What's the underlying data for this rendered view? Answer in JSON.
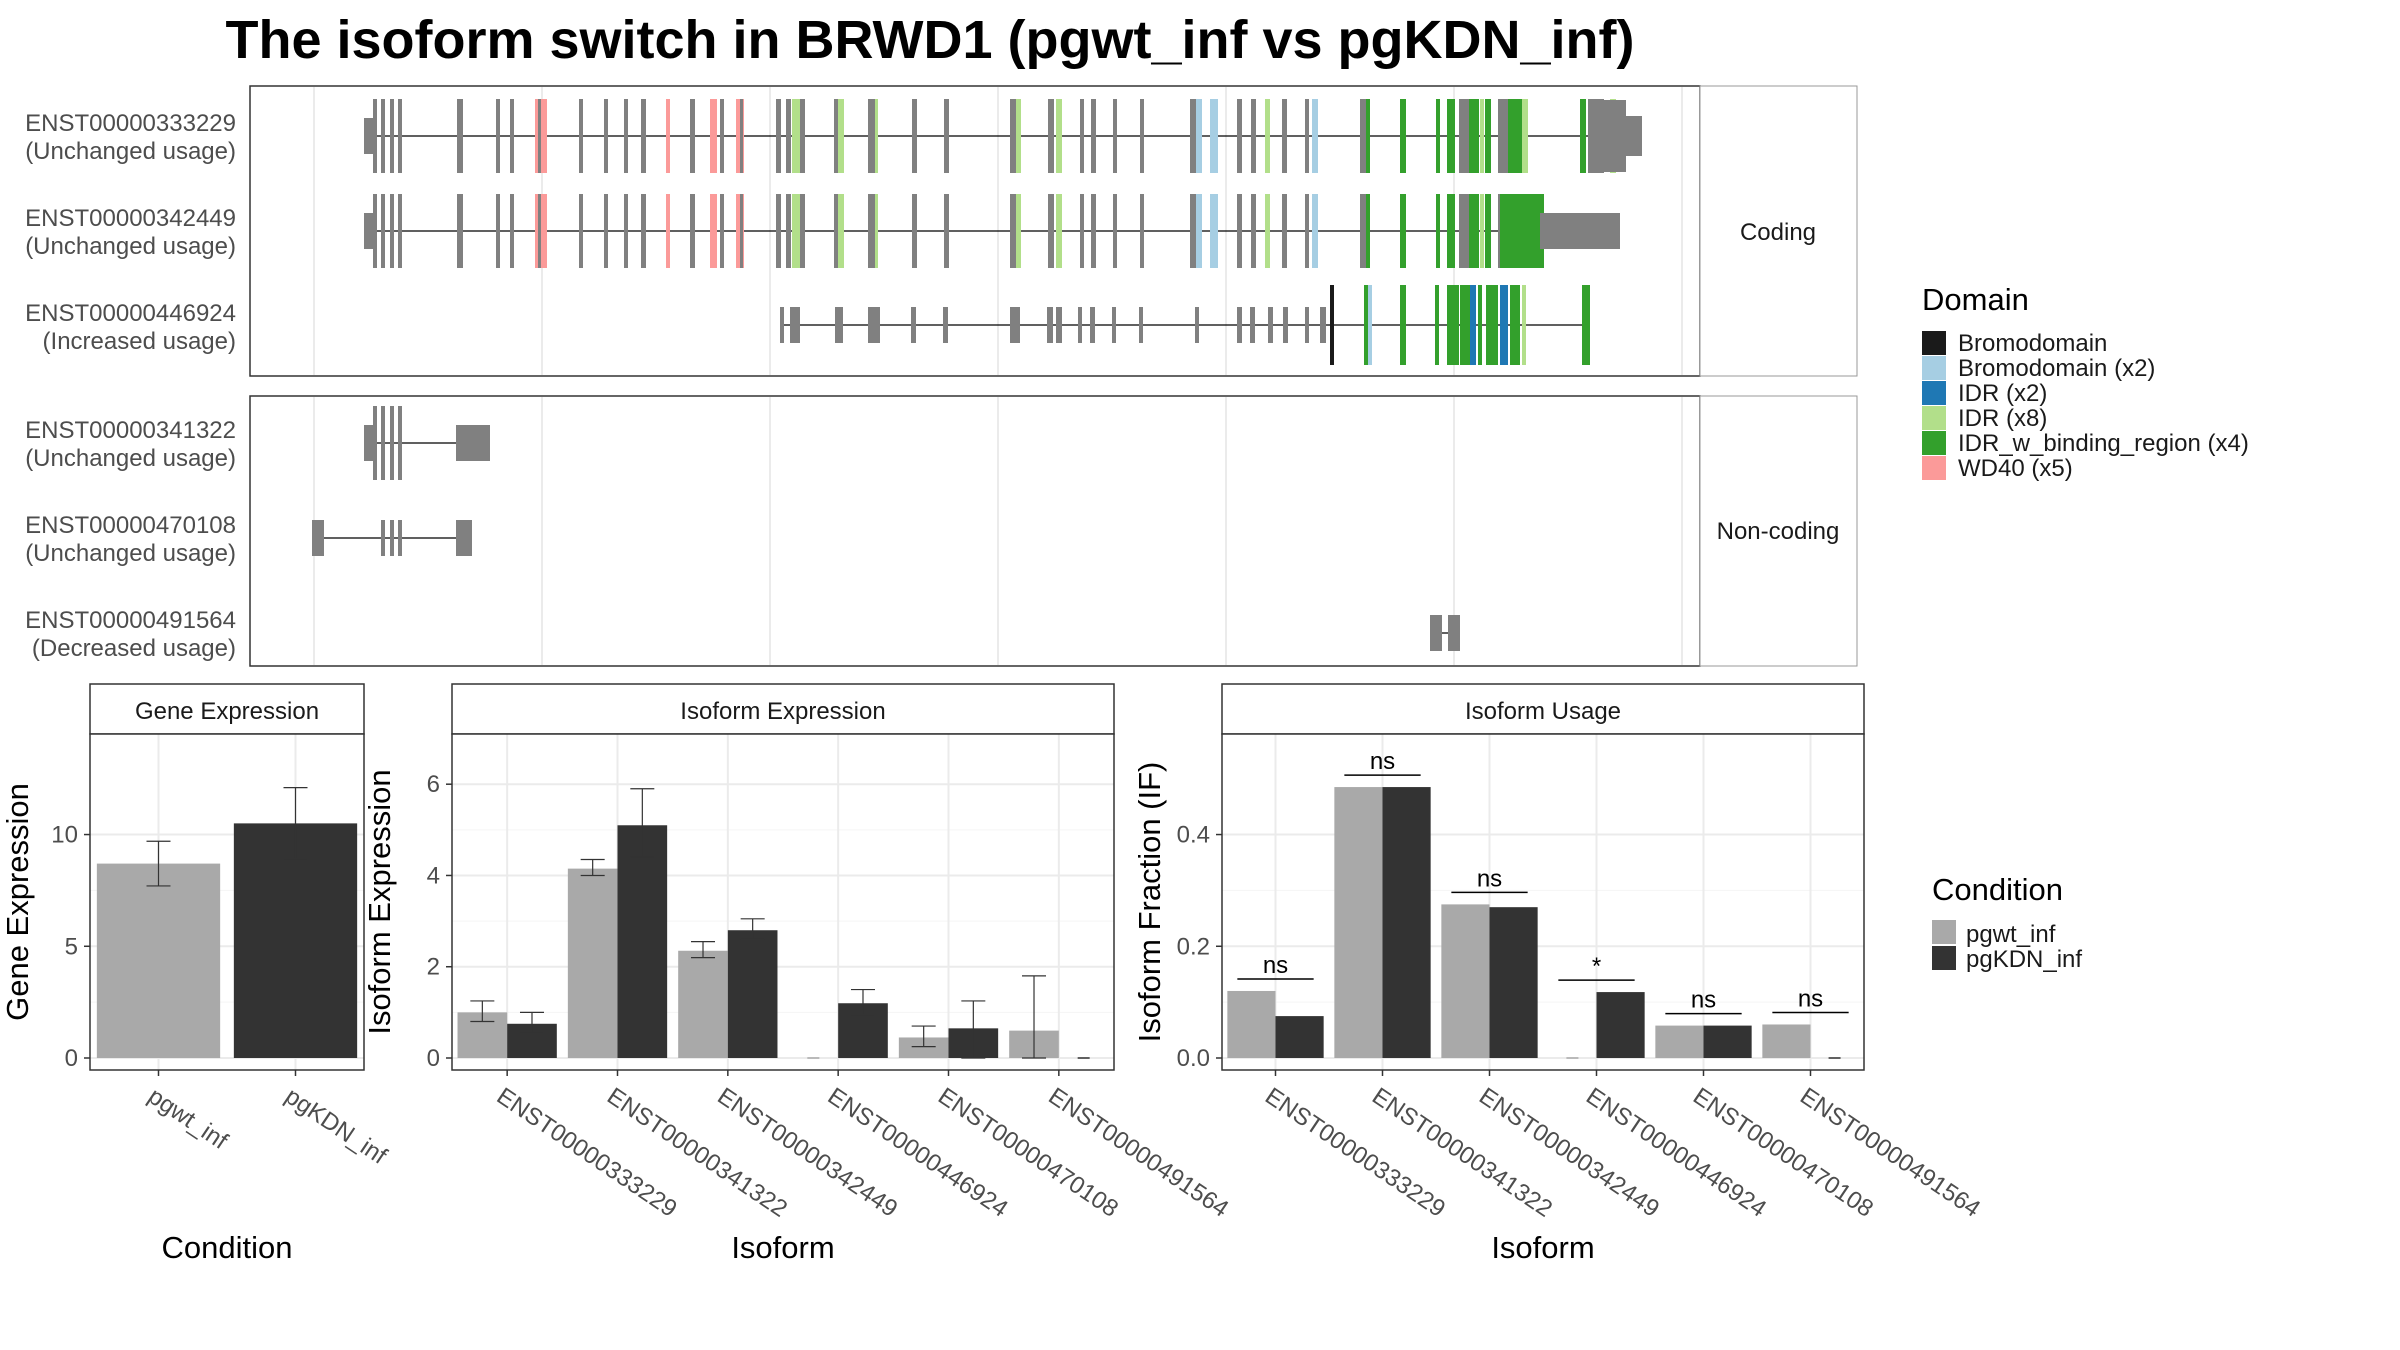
{
  "title": "The isoform switch in BRWD1 (pgwt_inf vs pgKDN_inf)",
  "colors": {
    "pgwt_inf": "#a9a9a9",
    "pgKDN_inf": "#333333",
    "exon": "#808080",
    "grid": "#ebebeb",
    "panel_border": "#333333",
    "strip_fill": "#ffffff"
  },
  "structure": {
    "facets": [
      "Coding",
      "Non-coding"
    ],
    "domain_legend": {
      "title": "Domain",
      "items": [
        {
          "label": "Bromodomain",
          "color": "#1a1a1a"
        },
        {
          "label": "Bromodomain (x2)",
          "color": "#a6cee3"
        },
        {
          "label": "IDR (x2)",
          "color": "#1f78b4"
        },
        {
          "label": "IDR (x8)",
          "color": "#b2df8a"
        },
        {
          "label": "IDR_w_binding_region (x4)",
          "color": "#33a02c"
        },
        {
          "label": "WD40 (x5)",
          "color": "#fb9a99"
        }
      ]
    },
    "isoforms": [
      {
        "id": "ENST00000333229",
        "usage": "(Unchanged usage)",
        "facet": "Coding"
      },
      {
        "id": "ENST00000342449",
        "usage": "(Unchanged usage)",
        "facet": "Coding"
      },
      {
        "id": "ENST00000446924",
        "usage": "(Increased usage)",
        "facet": "Coding"
      },
      {
        "id": "ENST00000341322",
        "usage": "(Unchanged usage)",
        "facet": "Non-coding"
      },
      {
        "id": "ENST00000470108",
        "usage": "(Unchanged usage)",
        "facet": "Non-coding"
      },
      {
        "id": "ENST00000491564",
        "usage": "(Decreased usage)",
        "facet": "Non-coding"
      }
    ]
  },
  "chart_data": [
    {
      "type": "bar",
      "title": "Gene Expression",
      "xlabel": "Condition",
      "ylabel": "Gene Expression",
      "ylim": [
        0,
        14.5
      ],
      "yticks": [
        0,
        5,
        10
      ],
      "categories": [
        "pgwt_inf",
        "pgKDN_inf"
      ],
      "values": [
        8.7,
        10.5
      ],
      "error": [
        [
          7.7,
          9.7
        ],
        [
          8.9,
          12.1
        ]
      ]
    },
    {
      "type": "bar",
      "title": "Isoform Expression",
      "xlabel": "Isoform",
      "ylabel": "Isoform Expression",
      "ylim": [
        0,
        7.1
      ],
      "yticks": [
        0,
        2,
        4,
        6
      ],
      "categories": [
        "ENST00000333229",
        "ENST00000341322",
        "ENST00000342449",
        "ENST00000446924",
        "ENST00000470108",
        "ENST00000491564"
      ],
      "series": [
        {
          "name": "pgwt_inf",
          "values": [
            1.0,
            4.15,
            2.35,
            0.0,
            0.45,
            0.6
          ],
          "error": [
            [
              0.8,
              1.25
            ],
            [
              4.0,
              4.35
            ],
            [
              2.2,
              2.55
            ],
            null,
            [
              0.25,
              0.7
            ],
            [
              0.0,
              1.8
            ]
          ]
        },
        {
          "name": "pgKDN_inf",
          "values": [
            0.75,
            5.1,
            2.8,
            1.2,
            0.65,
            0.0
          ],
          "error": [
            [
              0.55,
              1.0
            ],
            [
              4.4,
              5.9
            ],
            [
              2.6,
              3.05
            ],
            [
              0.95,
              1.5
            ],
            [
              0.0,
              1.25
            ],
            null
          ]
        }
      ]
    },
    {
      "type": "bar",
      "title": "Isoform Usage",
      "xlabel": "Isoform",
      "ylabel": "Isoform Fraction (IF)",
      "ylim": [
        0,
        0.58
      ],
      "yticks": [
        0.0,
        0.2,
        0.4
      ],
      "ytick_labels": [
        "0.0",
        "0.2",
        "0.4"
      ],
      "categories": [
        "ENST00000333229",
        "ENST00000341322",
        "ENST00000342449",
        "ENST00000446924",
        "ENST00000470108",
        "ENST00000491564"
      ],
      "series": [
        {
          "name": "pgwt_inf",
          "values": [
            0.12,
            0.485,
            0.275,
            0.0,
            0.058,
            0.06
          ]
        },
        {
          "name": "pgKDN_inf",
          "values": [
            0.075,
            0.485,
            0.27,
            0.118,
            0.058,
            0.0
          ]
        }
      ],
      "significance": [
        "ns",
        "ns",
        "ns",
        "*",
        "ns",
        "ns"
      ]
    }
  ],
  "condition_legend": {
    "title": "Condition",
    "items": [
      "pgwt_inf",
      "pgKDN_inf"
    ]
  }
}
